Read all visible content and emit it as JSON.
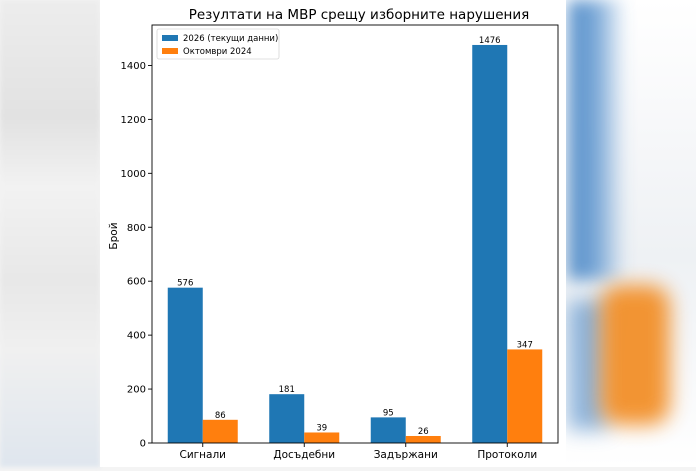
{
  "chart_data": {
    "type": "bar",
    "title": "Резултати на МВР срещу изборните нарушения",
    "ylabel": "Брой",
    "xlabel": "",
    "categories": [
      "Сигнали",
      "Досъдебни",
      "Задържани",
      "Протоколи"
    ],
    "series": [
      {
        "name": "2026 (текущи данни)",
        "color": "#1f77b4",
        "values": [
          576,
          181,
          95,
          1476
        ]
      },
      {
        "name": "Октомври 2024",
        "color": "#ff7f0e",
        "values": [
          86,
          39,
          26,
          347
        ]
      }
    ],
    "ylim": [
      0,
      1550
    ],
    "yticks": [
      0,
      200,
      400,
      600,
      800,
      1000,
      1200,
      1400
    ],
    "legend": "top-left",
    "grid": false
  }
}
